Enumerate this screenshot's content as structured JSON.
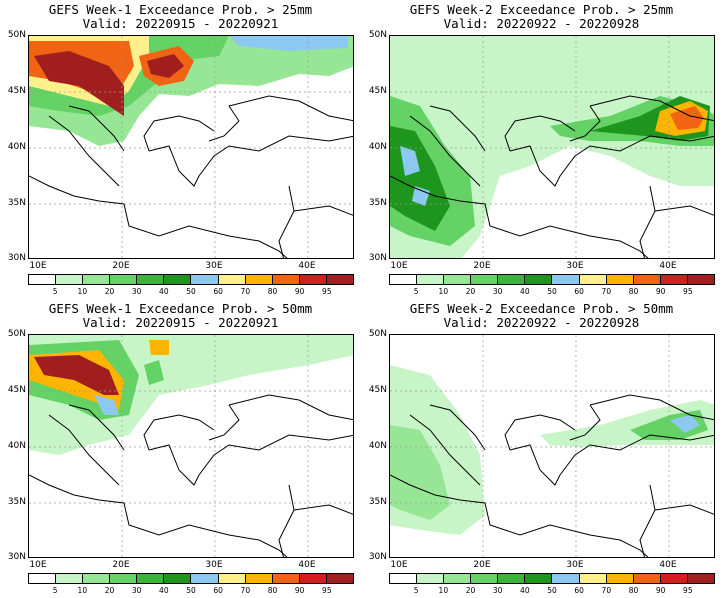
{
  "panels": [
    {
      "line1": "GEFS Week-1 Exceedance Prob. > 25mm",
      "line2": "Valid: 20220915 - 20220921"
    },
    {
      "line1": "GEFS Week-2 Exceedance Prob. > 25mm",
      "line2": "Valid: 20220922 - 20220928"
    },
    {
      "line1": "GEFS Week-1 Exceedance Prob. > 50mm",
      "line2": "Valid: 20220915 - 20220921"
    },
    {
      "line1": "GEFS Week-2 Exceedance Prob. > 50mm",
      "line2": "Valid: 20220922 - 20220928"
    }
  ],
  "lat_labels": [
    "50N",
    "45N",
    "40N",
    "35N",
    "30N"
  ],
  "lon_labels": [
    "10E",
    "20E",
    "30E",
    "40E"
  ],
  "colorbar": {
    "labels": [
      "5",
      "10",
      "20",
      "30",
      "40",
      "50",
      "60",
      "70",
      "80",
      "90",
      "95"
    ],
    "colors": [
      "#ffffff",
      "#c8f5c8",
      "#96e696",
      "#64d264",
      "#3cb43c",
      "#1e961e",
      "#8cc8f0",
      "#fff08c",
      "#ffb400",
      "#f06414",
      "#d21e1e",
      "#a01e1e"
    ]
  },
  "map_colors": {
    "land_line": "#000000",
    "grid_line": "#9a9a9a"
  }
}
